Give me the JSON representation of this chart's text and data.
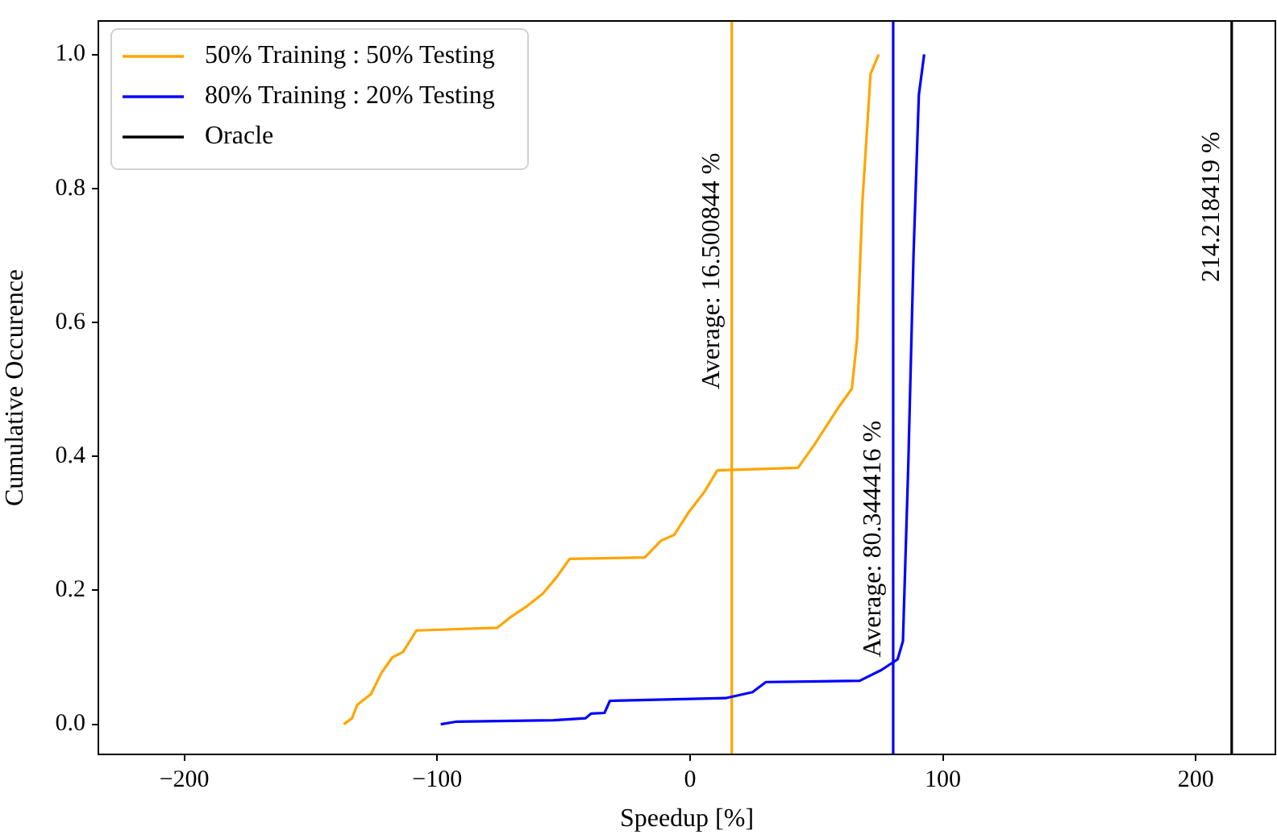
{
  "chart_data": {
    "type": "line",
    "xlabel": "Speedup [%]",
    "ylabel": "Cumulative Occurence",
    "series": [
      {
        "name": "50% Training : 50% Testing",
        "color": "#ffa500",
        "x": [
          -136.9,
          -133.7,
          -131.6,
          -126.2,
          -122,
          -117.7,
          -113.5,
          -108.2,
          -76.3,
          -71,
          -64.6,
          -58.2,
          -52.9,
          -47.6,
          -17.9,
          -11.5,
          -6.2,
          -0.8,
          5.5,
          10.8,
          42.7,
          49.1,
          58.7,
          64,
          66.1,
          68.2,
          71.4,
          74.6
        ],
        "values": [
          0,
          0.009,
          0.029,
          0.045,
          0.077,
          0.1,
          0.108,
          0.14,
          0.144,
          0.16,
          0.176,
          0.195,
          0.219,
          0.247,
          0.249,
          0.274,
          0.283,
          0.315,
          0.346,
          0.379,
          0.383,
          0.417,
          0.473,
          0.501,
          0.576,
          0.781,
          0.971,
          1.0
        ]
      },
      {
        "name": "80% Training : 20% Testing",
        "color": "#0000ff",
        "x": [
          -98.6,
          -92.2,
          -54,
          -41.3,
          -39.1,
          -33.8,
          -31.7,
          14,
          24.7,
          30,
          67.1,
          75.7,
          82.1,
          84.2,
          86.3,
          88.4,
          90.5,
          92.6
        ],
        "values": [
          0,
          0.004,
          0.006,
          0.009,
          0.016,
          0.017,
          0.035,
          0.039,
          0.048,
          0.063,
          0.065,
          0.081,
          0.097,
          0.124,
          0.385,
          0.702,
          0.94,
          1.0
        ]
      },
      {
        "name": "Oracle",
        "color": "#000000",
        "x": [
          214.218419,
          214.218419
        ],
        "values": [
          -0.045,
          1.05
        ]
      }
    ],
    "ref_lines": [
      {
        "axis": "x",
        "value": 16.500844,
        "color": "#ffa500"
      },
      {
        "axis": "x",
        "value": 80.344416,
        "color": "#0000ff"
      }
    ],
    "annotations": [
      {
        "text": "Average: 16.500844 %",
        "x": 16.500844,
        "y": 0.5
      },
      {
        "text": "Average: 80.344416 %",
        "x": 80.344416,
        "y": 0.1
      },
      {
        "text": "214.218419 %",
        "x": 214.218419,
        "y": 0.66
      }
    ],
    "xlim": [
      -234,
      231.5
    ],
    "ylim": [
      -0.045,
      1.05
    ],
    "xticks": [
      {
        "value": -200,
        "label": "−200"
      },
      {
        "value": -100,
        "label": "−100"
      },
      0,
      100,
      200
    ],
    "yticks": [
      {
        "value": 0,
        "label": "0.0"
      },
      {
        "value": 0.2,
        "label": "0.2"
      },
      {
        "value": 0.4,
        "label": "0.4"
      },
      {
        "value": 0.6,
        "label": "0.6"
      },
      {
        "value": 0.8,
        "label": "0.8"
      },
      {
        "value": 1,
        "label": "1.0"
      }
    ],
    "grid": false,
    "legend": "top left",
    "marker": "none",
    "line_style": "solid"
  }
}
